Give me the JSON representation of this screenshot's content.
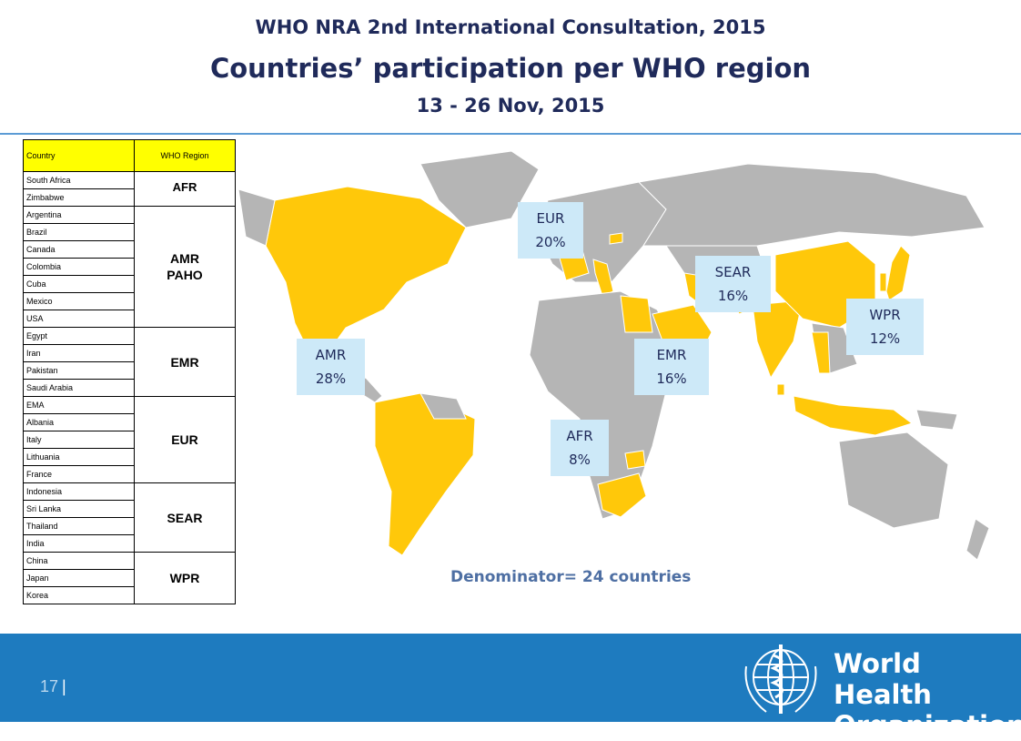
{
  "header": {
    "line1": "WHO NRA  2nd International Consultation, 2015",
    "line2": "Countries’ participation per WHO region",
    "line3": "13 - 26 Nov, 2015"
  },
  "table": {
    "col_country": "Country",
    "col_region": "WHO Region",
    "groups": [
      {
        "region": "AFR",
        "countries": [
          "South Africa",
          "Zimbabwe"
        ]
      },
      {
        "region": "AMR\nPAHO",
        "countries": [
          "Argentina",
          "Brazil",
          "Canada",
          "Colombia",
          "Cuba",
          "Mexico",
          "USA"
        ]
      },
      {
        "region": "EMR",
        "countries": [
          "Egypt",
          "Iran",
          "Pakistan",
          "Saudi Arabia"
        ]
      },
      {
        "region": "EUR",
        "countries": [
          "EMA",
          "Albania",
          "Italy",
          "Lithuania",
          "France"
        ]
      },
      {
        "region": "SEAR",
        "countries": [
          "Indonesia",
          "Sri Lanka",
          "Thailand",
          "India"
        ]
      },
      {
        "region": "WPR",
        "countries": [
          "China",
          "Japan",
          "Korea"
        ]
      }
    ]
  },
  "map_labels": {
    "eur": {
      "name": "EUR",
      "pct": "20%"
    },
    "sear": {
      "name": "SEAR",
      "pct": "16%"
    },
    "wpr": {
      "name": "WPR",
      "pct": "12%"
    },
    "amr": {
      "name": "AMR",
      "pct": "28%"
    },
    "emr": {
      "name": "EMR",
      "pct": "16%"
    },
    "afr": {
      "name": "AFR",
      "pct": "8%"
    }
  },
  "denominator": "Denominator= 24 countries",
  "footer": {
    "page_number": "17",
    "separator": "|",
    "org_line1": "World Health",
    "org_line2": "Organization"
  },
  "colors": {
    "participant": "#ffc80a",
    "other_land": "#b5b5b5",
    "label_bg": "#cde9f8",
    "footer_bg": "#1e7bbf",
    "title": "#1f2a5a"
  }
}
